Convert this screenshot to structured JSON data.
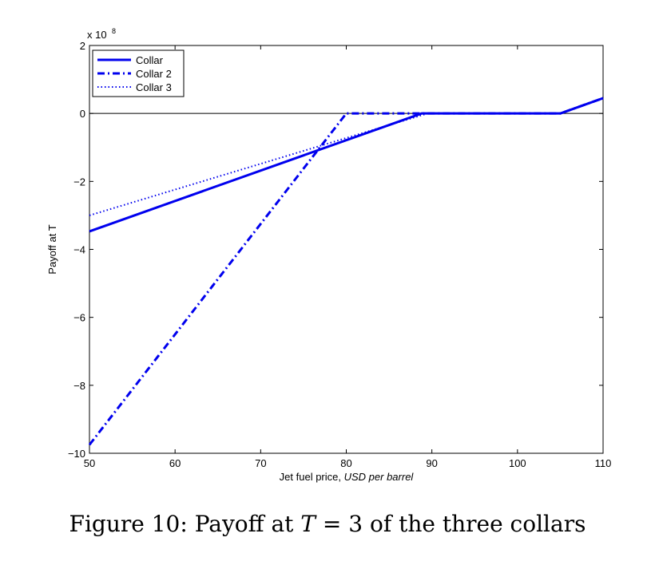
{
  "chart_data": {
    "type": "line",
    "xlabel_prefix": "Jet fuel price, ",
    "xlabel_unit": "USD per barrel",
    "ylabel": "Payoff at T",
    "y_multiplier_label": "x 10",
    "y_multiplier_exponent": "8",
    "xlim": [
      50,
      110
    ],
    "ylim": [
      -10,
      2
    ],
    "xticks": [
      50,
      60,
      70,
      80,
      90,
      100,
      110
    ],
    "yticks": [
      2,
      0,
      -2,
      -4,
      -6,
      -8,
      -10
    ],
    "xtick_labels": [
      "50",
      "60",
      "70",
      "80",
      "90",
      "100",
      "110"
    ],
    "ytick_labels": [
      "2",
      "0",
      "−2",
      "−4",
      "−6",
      "−8",
      "−10"
    ],
    "grid": false,
    "legend_position": "top-left",
    "zero_line": true,
    "series": [
      {
        "name": "Collar",
        "style": "solid",
        "color": "#0000ee",
        "x": [
          50,
          88.8,
          105,
          110
        ],
        "y": [
          -3.47,
          0,
          0,
          0.45
        ]
      },
      {
        "name": "Collar 2",
        "style": "dashdot",
        "color": "#0000ee",
        "x": [
          50,
          80,
          88.8,
          105,
          110
        ],
        "y": [
          -9.75,
          0,
          0,
          0,
          0.45
        ]
      },
      {
        "name": "Collar 3",
        "style": "dotted",
        "color": "#0000ee",
        "x": [
          50,
          89.5,
          105,
          110
        ],
        "y": [
          -3.0,
          0,
          0,
          0.45
        ]
      }
    ]
  },
  "caption": {
    "prefix": "Figure 10: Payoff at ",
    "variable": "T",
    "equation_rest": " = 3 of the three collars"
  }
}
